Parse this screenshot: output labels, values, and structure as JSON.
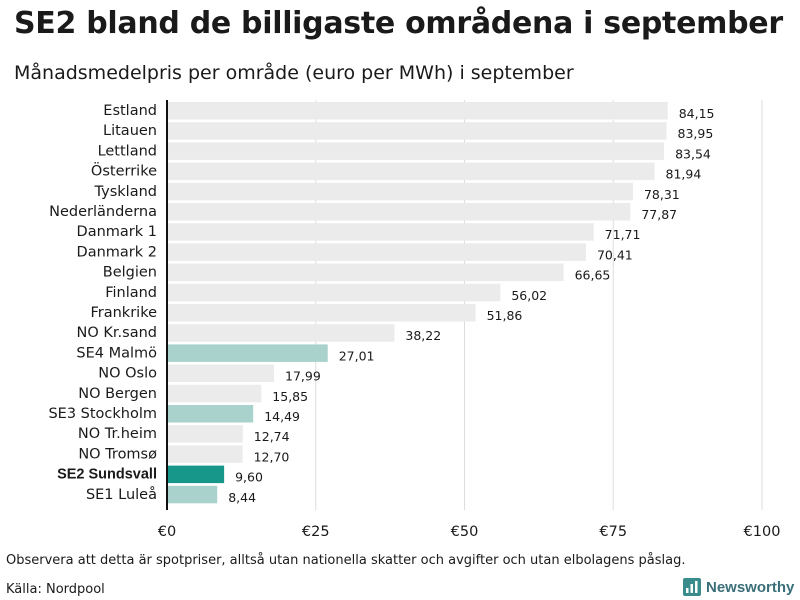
{
  "header": {
    "title": "SE2 bland de billigaste områdena i september",
    "subtitle": "Månadsmedelpris per område (euro per MWh) i september"
  },
  "footer": {
    "note": "Observera att detta är spotpriser, alltså utan nationella skatter och avgifter och utan elbolagens påslag.",
    "source": "Källa: Nordpool",
    "brand": "Newsworthy",
    "brand_icon": "bar-chart-logo-icon"
  },
  "colors": {
    "default_bar": "#ebebeb",
    "se_bar": "#a8d2cb",
    "highlight_bar": "#17978a",
    "gridline": "#dddddd",
    "axis": "#111111",
    "text": "#1a1a1a"
  },
  "chart_data": {
    "type": "bar",
    "orientation": "horizontal",
    "categories": [
      "Estland",
      "Litauen",
      "Lettland",
      "Österrike",
      "Tyskland",
      "Nederländerna",
      "Danmark 1",
      "Danmark 2",
      "Belgien",
      "Finland",
      "Frankrike",
      "NO Kr.sand",
      "SE4 Malmö",
      "NO Oslo",
      "NO Bergen",
      "SE3 Stockholm",
      "NO Tr.heim",
      "NO Tromsø",
      "SE2 Sundsvall",
      "SE1 Luleå"
    ],
    "values": [
      84.15,
      83.95,
      83.54,
      81.94,
      78.31,
      77.87,
      71.71,
      70.41,
      66.65,
      56.02,
      51.86,
      38.22,
      27.01,
      17.99,
      15.85,
      14.49,
      12.74,
      12.7,
      9.6,
      8.44
    ],
    "value_labels": [
      "84,15",
      "83,95",
      "83,54",
      "81,94",
      "78,31",
      "77,87",
      "71,71",
      "70,41",
      "66,65",
      "56,02",
      "51,86",
      "38,22",
      "27,01",
      "17,99",
      "15,85",
      "14,49",
      "12,74",
      "12,70",
      "9,60",
      "8,44"
    ],
    "bar_colors": [
      "default",
      "default",
      "default",
      "default",
      "default",
      "default",
      "default",
      "default",
      "default",
      "default",
      "default",
      "default",
      "se",
      "default",
      "default",
      "se",
      "default",
      "default",
      "highlight",
      "se"
    ],
    "bold_categories": [
      "SE2 Sundsvall"
    ],
    "xlim": [
      0,
      100
    ],
    "xticks": [
      0,
      25,
      50,
      75,
      100
    ],
    "xtick_labels": [
      "€0",
      "€25",
      "€50",
      "€75",
      "€100"
    ],
    "grid": true,
    "xlabel": "",
    "ylabel": ""
  }
}
